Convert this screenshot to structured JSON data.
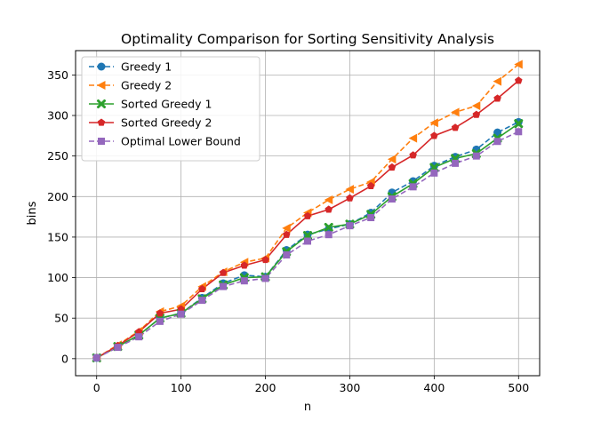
{
  "chart_data": {
    "type": "line",
    "title": "Optimality Comparison for Sorting Sensitivity Analysis",
    "xlabel": "n",
    "ylabel": "bins",
    "xlim": [
      -25,
      525
    ],
    "ylim": [
      -21,
      380
    ],
    "x_ticks": [
      0,
      100,
      200,
      300,
      400,
      500
    ],
    "y_ticks": [
      0,
      50,
      100,
      150,
      200,
      250,
      300,
      350
    ],
    "grid": true,
    "legend_position": "top-left",
    "x": [
      0,
      25,
      50,
      75,
      100,
      125,
      150,
      175,
      200,
      225,
      250,
      275,
      300,
      325,
      350,
      375,
      400,
      425,
      450,
      475,
      500
    ],
    "series": [
      {
        "name": "Greedy 1",
        "color": "#1f77b4",
        "marker": "circle",
        "dash": "dashed",
        "values": [
          1,
          15,
          29,
          50,
          56,
          75,
          93,
          103,
          101,
          134,
          153,
          160,
          166,
          180,
          205,
          219,
          238,
          249,
          258,
          279,
          292
        ]
      },
      {
        "name": "Greedy 2",
        "color": "#ff7f0e",
        "marker": "triangle-left",
        "dash": "dashed",
        "values": [
          1,
          17,
          34,
          58,
          65,
          89,
          107,
          119,
          124,
          161,
          180,
          196,
          209,
          218,
          246,
          272,
          291,
          304,
          312,
          342,
          363
        ]
      },
      {
        "name": "Sorted Greedy 1",
        "color": "#2ca02c",
        "marker": "x",
        "dash": "solid",
        "values": [
          1,
          15,
          29,
          50,
          56,
          74,
          91,
          100,
          101,
          132,
          152,
          162,
          166,
          178,
          200,
          216,
          236,
          247,
          253,
          272,
          290
        ]
      },
      {
        "name": "Sorted Greedy 2",
        "color": "#d62728",
        "marker": "pentagon",
        "dash": "solid",
        "values": [
          1,
          16,
          33,
          56,
          61,
          86,
          106,
          115,
          122,
          153,
          176,
          184,
          198,
          213,
          236,
          251,
          275,
          285,
          301,
          321,
          343
        ]
      },
      {
        "name": "Optimal Lower Bound",
        "color": "#9467bd",
        "marker": "square",
        "dash": "dashed",
        "values": [
          1,
          14,
          27,
          46,
          55,
          72,
          89,
          96,
          99,
          128,
          145,
          153,
          164,
          174,
          197,
          212,
          229,
          241,
          250,
          268,
          280
        ]
      }
    ]
  }
}
